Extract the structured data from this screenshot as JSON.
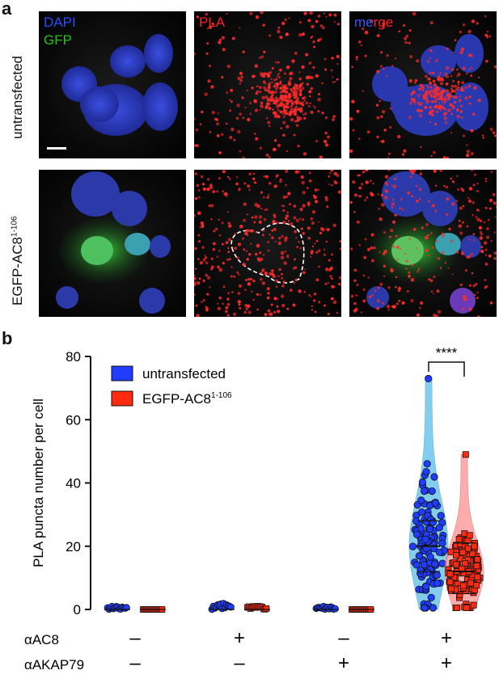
{
  "panel_a": {
    "label": "a",
    "channels": {
      "dapi": "DAPI",
      "gfp": "GFP",
      "pla": "PLA",
      "merge_m": "m",
      "merge_e": "e",
      "merge_r": "r",
      "merge_ge": "ge"
    },
    "rows": {
      "row1": "untransfected",
      "row2_main": "EGFP-AC8",
      "row2_sup": "1-106"
    },
    "colors": {
      "dapi": "#2d4bff",
      "gfp": "#22c41c",
      "pla": "#ff2020",
      "merge_blue": "#3a53ff"
    }
  },
  "panel_b": {
    "label": "b"
  },
  "chart_data": {
    "type": "scatter",
    "ylabel": "PLA puncta number per cell",
    "ylim": [
      0,
      80
    ],
    "yticks": [
      0,
      20,
      40,
      60,
      80
    ],
    "legend": {
      "placement": "top-left"
    },
    "series": [
      {
        "name": "untransfected",
        "sup": "",
        "color": "#1f3cff",
        "marker": "circle",
        "groups": [
          {
            "median": 0,
            "max": 1
          },
          {
            "median": 0,
            "max": 2
          },
          {
            "median": 0,
            "max": 1
          },
          {
            "median": 20,
            "max": 73,
            "q1": 12,
            "q3": 28
          }
        ]
      },
      {
        "name": "EGFP-AC8",
        "sup": "1-106",
        "color": "#ff2a10",
        "marker": "square",
        "groups": [
          {
            "median": 0,
            "max": 0
          },
          {
            "median": 0,
            "max": 1
          },
          {
            "median": 0,
            "max": 0
          },
          {
            "median": 12,
            "max": 49,
            "q1": 5,
            "q3": 21
          }
        ]
      }
    ],
    "conditions": [
      {
        "ac8": "–",
        "akap": "–"
      },
      {
        "ac8": "+",
        "akap": "–"
      },
      {
        "ac8": "–",
        "akap": "+"
      },
      {
        "ac8": "+",
        "akap": "+"
      }
    ],
    "row_labels": {
      "ac8": "αAC8",
      "akap": "αAKAP79"
    },
    "significance": "****"
  }
}
